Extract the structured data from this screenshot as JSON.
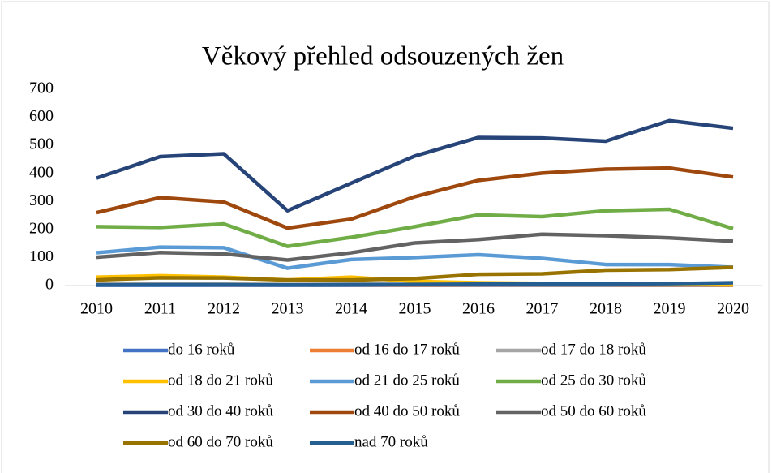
{
  "chart_data": {
    "type": "line",
    "title": "Věkový přehled odsouzených žen",
    "x": [
      2010,
      2011,
      2012,
      2013,
      2014,
      2015,
      2016,
      2017,
      2018,
      2019,
      2020
    ],
    "ylim": [
      0,
      700
    ],
    "yticks": [
      0,
      100,
      200,
      300,
      400,
      500,
      600,
      700
    ],
    "grid": false,
    "legend": "bottom",
    "series": [
      {
        "name": "do 16 roků",
        "color": "#4472c4",
        "values": [
          1,
          1,
          1,
          1,
          1,
          1,
          1,
          1,
          1,
          1,
          1
        ]
      },
      {
        "name": "od 16 do 17 roků",
        "color": "#ed7d31",
        "values": [
          3,
          4,
          3,
          2,
          3,
          2,
          2,
          2,
          2,
          1,
          1
        ]
      },
      {
        "name": "od 17 do 18 roků",
        "color": "#a5a5a5",
        "values": [
          5,
          6,
          5,
          4,
          5,
          4,
          3,
          3,
          3,
          2,
          2
        ]
      },
      {
        "name": "od 18 do 21 roků",
        "color": "#ffc000",
        "values": [
          30,
          35,
          30,
          20,
          30,
          15,
          10,
          8,
          8,
          5,
          3
        ]
      },
      {
        "name": "od 21 do 25 roků",
        "color": "#5b9bd5",
        "values": [
          117,
          137,
          135,
          62,
          93,
          100,
          110,
          97,
          75,
          75,
          65
        ]
      },
      {
        "name": "od 25 do 30 roků",
        "color": "#70ad47",
        "values": [
          210,
          207,
          220,
          140,
          172,
          210,
          252,
          246,
          267,
          272,
          203
        ]
      },
      {
        "name": "od 30 do 40 roků",
        "color": "#264478",
        "values": [
          383,
          460,
          470,
          267,
          365,
          462,
          528,
          526,
          515,
          588,
          561
        ]
      },
      {
        "name": "od 40 do 50 roků",
        "color": "#9e480e",
        "values": [
          260,
          314,
          298,
          205,
          237,
          317,
          375,
          401,
          415,
          419,
          387
        ]
      },
      {
        "name": "od 50 do 60 roků",
        "color": "#636363",
        "values": [
          101,
          118,
          113,
          91,
          117,
          152,
          164,
          183,
          178,
          170,
          158
        ]
      },
      {
        "name": "od 60 do 70 roků",
        "color": "#997300",
        "values": [
          20,
          28,
          27,
          20,
          20,
          25,
          40,
          42,
          55,
          57,
          65
        ]
      },
      {
        "name": "nad 70 roků",
        "color": "#255e91",
        "values": [
          2,
          3,
          3,
          2,
          3,
          4,
          5,
          6,
          6,
          7,
          10
        ]
      }
    ]
  }
}
